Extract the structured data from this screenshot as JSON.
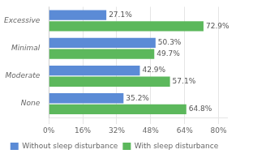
{
  "chart_data": {
    "type": "bar",
    "orientation": "horizontal",
    "categories": [
      "Excessive",
      "Minimal",
      "Moderate",
      "None"
    ],
    "series": [
      {
        "name": "Without sleep disturbance",
        "color": "#5B8BD6",
        "values": [
          27.1,
          50.3,
          42.9,
          35.2
        ],
        "value_labels": [
          "27.1%",
          "50.3%",
          "42.9%",
          "35.2%"
        ]
      },
      {
        "name": "With sleep disturbance",
        "color": "#5CB85C",
        "values": [
          72.9,
          49.7,
          57.1,
          64.8
        ],
        "value_labels": [
          "72.9%",
          "49.7%",
          "57.1%",
          "64.8%"
        ]
      }
    ],
    "xlim": [
      0,
      84
    ],
    "xticks": [
      {
        "value": 0,
        "label": "0%"
      },
      {
        "value": 16,
        "label": "16%"
      },
      {
        "value": 32,
        "label": "32%"
      },
      {
        "value": 48,
        "label": "48%"
      },
      {
        "value": 64,
        "label": "64%"
      },
      {
        "value": 80,
        "label": "80%"
      }
    ],
    "grid": true,
    "legend": "bottom",
    "data_labels": true
  }
}
